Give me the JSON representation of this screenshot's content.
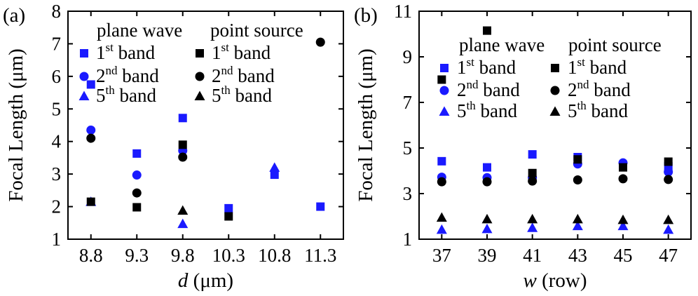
{
  "chart_data": [
    {
      "type": "scatter",
      "panel_label": "(a)",
      "xlabel": {
        "italic": "d",
        "rest": " (μm)"
      },
      "ylabel": "Focal Length (μm)",
      "categories": [
        "8.8",
        "9.3",
        "9.8",
        "10.3",
        "10.8",
        "11.3"
      ],
      "yticks": [
        "1",
        "2",
        "3",
        "4",
        "5",
        "6",
        "7",
        "8"
      ],
      "ylim": [
        1,
        8
      ],
      "legend_position": "top-right",
      "legend_headers": [
        "plane wave",
        "point source"
      ],
      "series": [
        {
          "source": "plane wave",
          "band_num": "1",
          "band_sup": "st",
          "band_word": "band",
          "marker": "square",
          "color": "#1a1aff",
          "values": [
            5.75,
            3.63,
            4.72,
            1.95,
            2.98,
            2.0
          ]
        },
        {
          "source": "plane wave",
          "band_num": "2",
          "band_sup": "nd",
          "band_word": "band",
          "marker": "circle",
          "color": "#1a1aff",
          "values": [
            4.35,
            2.97,
            3.72,
            null,
            null,
            null
          ]
        },
        {
          "source": "plane wave",
          "band_num": "5",
          "band_sup": "th",
          "band_word": "band",
          "marker": "triangle",
          "color": "#1a1aff",
          "values": [
            2.15,
            null,
            1.47,
            null,
            3.2,
            null
          ]
        },
        {
          "source": "point source",
          "band_num": "1",
          "band_sup": "st",
          "band_word": "band",
          "marker": "square",
          "color": "#000000",
          "values": [
            2.15,
            1.98,
            3.9,
            1.7,
            null,
            null
          ]
        },
        {
          "source": "point source",
          "band_num": "2",
          "band_sup": "nd",
          "band_word": "band",
          "marker": "circle",
          "color": "#000000",
          "values": [
            4.1,
            2.42,
            3.52,
            null,
            null,
            7.05
          ]
        },
        {
          "source": "point source",
          "band_num": "5",
          "band_sup": "th",
          "band_word": "band",
          "marker": "triangle",
          "color": "#000000",
          "values": [
            null,
            null,
            1.88,
            null,
            null,
            null
          ]
        }
      ]
    },
    {
      "type": "scatter",
      "panel_label": "(b)",
      "xlabel": {
        "italic": "w",
        "rest": " (row)"
      },
      "ylabel": "Focal Length (μm)",
      "categories": [
        "37",
        "39",
        "41",
        "43",
        "45",
        "47"
      ],
      "yticks": [
        "1",
        "3",
        "5",
        "7",
        "9",
        "11"
      ],
      "ylim": [
        1,
        11
      ],
      "legend_position": "top-right",
      "legend_headers": [
        "plane wave",
        "point source"
      ],
      "series": [
        {
          "source": "plane wave",
          "band_num": "1",
          "band_sup": "st",
          "band_word": "band",
          "marker": "square",
          "color": "#1a1aff",
          "values": [
            4.42,
            4.15,
            4.72,
            4.6,
            4.2,
            4.2
          ]
        },
        {
          "source": "plane wave",
          "band_num": "2",
          "band_sup": "nd",
          "band_word": "band",
          "marker": "circle",
          "color": "#1a1aff",
          "values": [
            3.72,
            3.7,
            3.7,
            4.3,
            4.35,
            3.95
          ]
        },
        {
          "source": "plane wave",
          "band_num": "5",
          "band_sup": "th",
          "band_word": "band",
          "marker": "triangle",
          "color": "#1a1aff",
          "values": [
            1.42,
            1.45,
            1.5,
            1.58,
            1.58,
            1.42
          ]
        },
        {
          "source": "point source",
          "band_num": "1",
          "band_sup": "st",
          "band_word": "band",
          "marker": "square",
          "color": "#000000",
          "values": [
            8.0,
            10.15,
            3.9,
            4.5,
            4.15,
            4.4
          ]
        },
        {
          "source": "point source",
          "band_num": "2",
          "band_sup": "nd",
          "band_word": "band",
          "marker": "circle",
          "color": "#000000",
          "values": [
            3.52,
            3.52,
            3.55,
            3.6,
            3.65,
            3.62
          ]
        },
        {
          "source": "point source",
          "band_num": "5",
          "band_sup": "th",
          "band_word": "band",
          "marker": "triangle",
          "color": "#000000",
          "values": [
            1.95,
            1.88,
            1.88,
            1.88,
            1.85,
            1.85
          ]
        }
      ]
    }
  ]
}
